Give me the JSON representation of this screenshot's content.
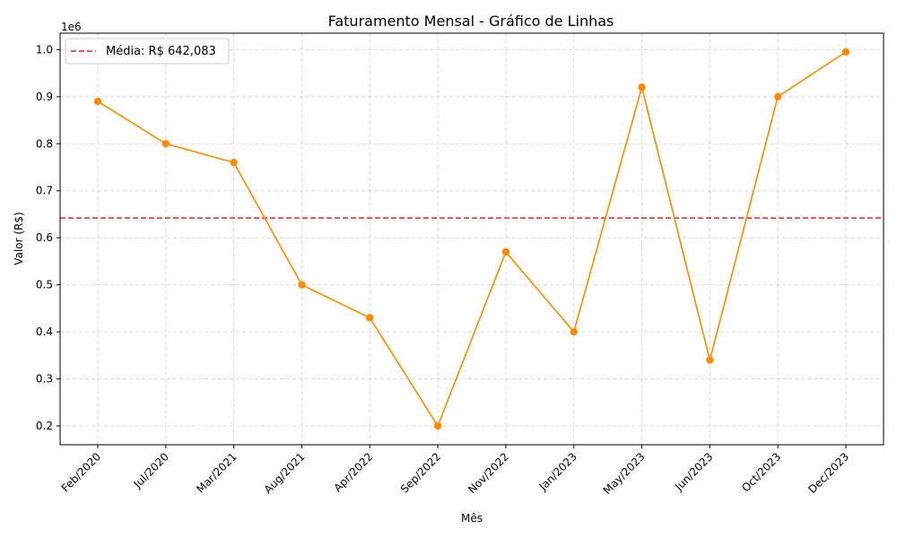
{
  "chart_data": {
    "type": "line",
    "title": "Faturamento Mensal - Gráfico de Linhas",
    "xlabel": "Mês",
    "ylabel": "Valor (R$)",
    "y_offset_label": "1e6",
    "categories": [
      "Feb/2020",
      "Jul/2020",
      "Mar/2021",
      "Aug/2021",
      "Apr/2022",
      "Sep/2022",
      "Nov/2022",
      "Jan/2023",
      "May/2023",
      "Jun/2023",
      "Oct/2023",
      "Dec/2023"
    ],
    "series": [
      {
        "values": [
          890000,
          800000,
          760000,
          500000,
          430000,
          200000,
          570000,
          400000,
          920000,
          340000,
          900000,
          995000
        ],
        "color": "#ff8c00"
      }
    ],
    "mean_line": {
      "value": 642083,
      "label": "Média: R$ 642,083",
      "color": "#d62728",
      "style": "dashed"
    },
    "yticks": [
      "0.2",
      "0.3",
      "0.4",
      "0.5",
      "0.6",
      "0.7",
      "0.8",
      "0.9",
      "1.0"
    ],
    "ytick_values": [
      0.2,
      0.3,
      0.4,
      0.5,
      0.6,
      0.7,
      0.8,
      0.9,
      1.0
    ],
    "ylim": [
      0.16,
      1.035
    ],
    "grid": true,
    "legend_position": "top-left"
  }
}
